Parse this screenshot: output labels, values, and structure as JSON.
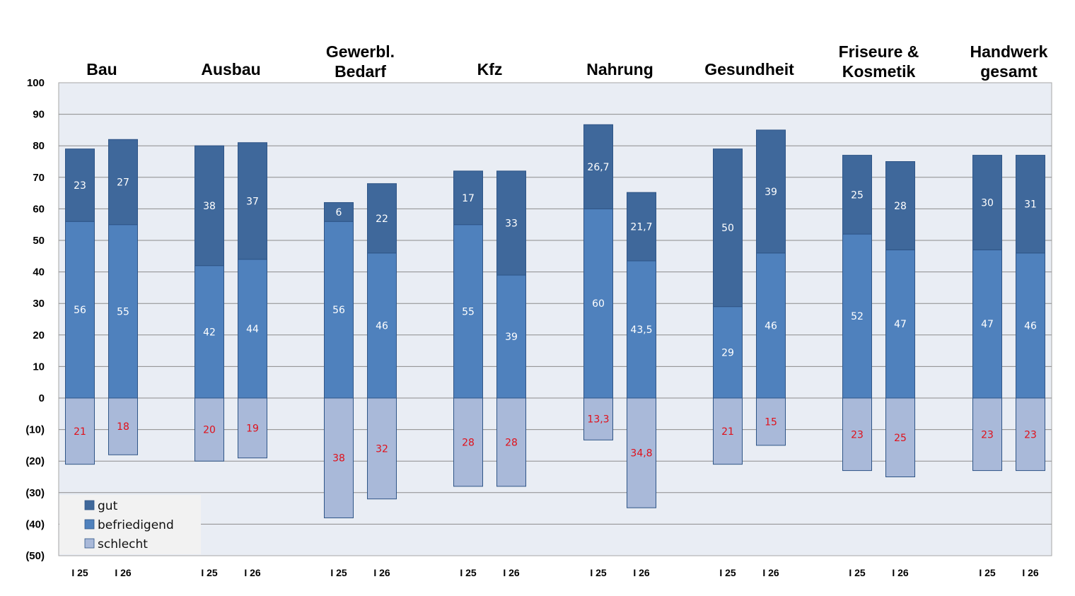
{
  "chart_data": {
    "type": "bar",
    "stacked": true,
    "title": "",
    "xlabel": "",
    "ylabel": "",
    "ylim": [
      -50,
      100
    ],
    "yticks": [
      100,
      90,
      80,
      70,
      60,
      50,
      40,
      30,
      20,
      10,
      0,
      -10,
      -20,
      -30,
      -40,
      -50
    ],
    "ytick_labels": [
      "100",
      "90",
      "80",
      "70",
      "60",
      "50",
      "40",
      "30",
      "20",
      "10",
      "0",
      "(10)",
      "(20)",
      "(30)",
      "(40)",
      "(50)"
    ],
    "grid": true,
    "legend_position": "bottom-left",
    "colors": {
      "gut": "#3F689B",
      "befriedigend": "#4F81BD",
      "schlecht": "#A9B9D9",
      "negative_label": "#E0101A",
      "positive_label": "#FFFFFF",
      "plot_background": "#E9EDF4"
    },
    "legend": [
      "gut",
      "befriedigend",
      "schlecht"
    ],
    "groups": [
      {
        "title": [
          "Bau"
        ],
        "bars": [
          {
            "label": "I 25",
            "gut": 23,
            "befriedigend": 56,
            "schlecht": 21,
            "labels": [
              "23",
              "56",
              "21"
            ]
          },
          {
            "label": "I 26",
            "gut": 27,
            "befriedigend": 55,
            "schlecht": 18,
            "labels": [
              "27",
              "55",
              "18"
            ]
          }
        ]
      },
      {
        "title": [
          "Ausbau"
        ],
        "bars": [
          {
            "label": "I 25",
            "gut": 38,
            "befriedigend": 42,
            "schlecht": 20,
            "labels": [
              "38",
              "42",
              "20"
            ]
          },
          {
            "label": "I 26",
            "gut": 37,
            "befriedigend": 44,
            "schlecht": 19,
            "labels": [
              "37",
              "44",
              "19"
            ]
          }
        ]
      },
      {
        "title": [
          "Gewerbl.",
          "Bedarf"
        ],
        "bars": [
          {
            "label": "I 25",
            "gut": 6,
            "befriedigend": 56,
            "schlecht": 38,
            "labels": [
              "6",
              "56",
              "38"
            ]
          },
          {
            "label": "I 26",
            "gut": 22,
            "befriedigend": 46,
            "schlecht": 32,
            "labels": [
              "22",
              "46",
              "32"
            ]
          }
        ]
      },
      {
        "title": [
          "Kfz"
        ],
        "bars": [
          {
            "label": "I 25",
            "gut": 17,
            "befriedigend": 55,
            "schlecht": 28,
            "labels": [
              "17",
              "55",
              "28"
            ]
          },
          {
            "label": "I 26",
            "gut": 33,
            "befriedigend": 39,
            "schlecht": 28,
            "labels": [
              "33",
              "39",
              "28"
            ]
          }
        ]
      },
      {
        "title": [
          "Nahrung"
        ],
        "bars": [
          {
            "label": "I 25",
            "gut": 26.7,
            "befriedigend": 60,
            "schlecht": 13.3,
            "labels": [
              "26,7",
              "60",
              "13,3"
            ]
          },
          {
            "label": "I 26",
            "gut": 21.7,
            "befriedigend": 43.5,
            "schlecht": 34.8,
            "labels": [
              "21,7",
              "43,5",
              "34,8"
            ]
          }
        ]
      },
      {
        "title": [
          "Gesundheit"
        ],
        "bars": [
          {
            "label": "I 25",
            "gut": 50,
            "befriedigend": 29,
            "schlecht": 21,
            "labels": [
              "50",
              "29",
              "21"
            ]
          },
          {
            "label": "I 26",
            "gut": 39,
            "befriedigend": 46,
            "schlecht": 15,
            "labels": [
              "39",
              "46",
              "15"
            ]
          }
        ]
      },
      {
        "title": [
          "Friseure &",
          "Kosmetik"
        ],
        "bars": [
          {
            "label": "I 25",
            "gut": 25,
            "befriedigend": 52,
            "schlecht": 23,
            "labels": [
              "25",
              "52",
              "23"
            ]
          },
          {
            "label": "I 26",
            "gut": 28,
            "befriedigend": 47,
            "schlecht": 25,
            "labels": [
              "28",
              "47",
              "25"
            ]
          }
        ]
      },
      {
        "title": [
          "Handwerk",
          "gesamt"
        ],
        "bars": [
          {
            "label": "I 25",
            "gut": 30,
            "befriedigend": 47,
            "schlecht": 23,
            "labels": [
              "30",
              "47",
              "23"
            ]
          },
          {
            "label": "I 26",
            "gut": 31,
            "befriedigend": 46,
            "schlecht": 23,
            "labels": [
              "31",
              "46",
              "23"
            ]
          }
        ]
      }
    ]
  }
}
